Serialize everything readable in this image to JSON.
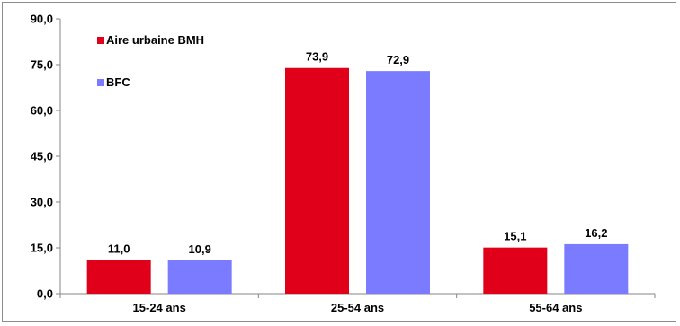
{
  "chart_data": {
    "type": "bar",
    "categories": [
      "15-24 ans",
      "25-54 ans",
      "55-64 ans"
    ],
    "series": [
      {
        "name": "Aire urbaine BMH",
        "values": [
          11.0,
          73.9,
          15.1
        ],
        "labels": [
          "11,0",
          "73,9",
          "15,1"
        ],
        "color": "#e0001a"
      },
      {
        "name": "BFC",
        "values": [
          10.9,
          72.9,
          16.2
        ],
        "labels": [
          "10,9",
          "72,9",
          "16,2"
        ],
        "color": "#7b7bff"
      }
    ],
    "ylim": [
      0,
      90
    ],
    "yticks": [
      0,
      15,
      30,
      45,
      60,
      75,
      90
    ],
    "ytick_labels": [
      "0,0",
      "15,0",
      "30,0",
      "45,0",
      "60,0",
      "75,0",
      "90,0"
    ],
    "title": "",
    "xlabel": "",
    "ylabel": "",
    "grid": false,
    "legend_position": "top-left"
  }
}
